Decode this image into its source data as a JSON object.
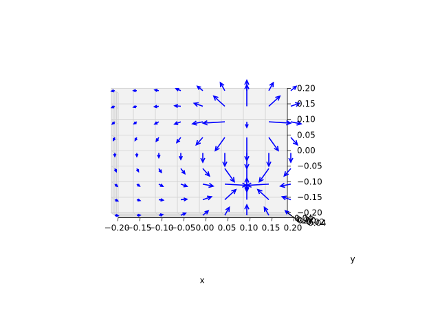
{
  "chart_data": {
    "type": "quiver3d",
    "title": "",
    "xlabel": "x",
    "ylabel": "y",
    "zlabel": "",
    "xlim": [
      -0.2,
      0.2
    ],
    "ylim": [
      -0.04,
      0.04
    ],
    "zlim": [
      -0.2,
      0.2
    ],
    "x_ticks": [
      "−0.20",
      "−0.15",
      "−0.10",
      "−0.05",
      "0.00",
      "0.05",
      "0.10",
      "0.15",
      "0.20"
    ],
    "y_ticks": [
      "−0.04",
      "−0.02",
      "0.00",
      "0.02",
      "0.04"
    ],
    "z_ticks": [
      "−0.20",
      "−0.15",
      "−0.10",
      "−0.05",
      "0.00",
      "0.05",
      "0.10",
      "0.15",
      "0.20"
    ],
    "grid": true,
    "arrow_color": "#0000ff",
    "field": "E-field of two point charges: +q at (0.1, 0.1), −q at (0.1, −0.1) in the x–z plane",
    "grid_x": [
      -0.2,
      -0.15,
      -0.1,
      -0.05,
      0.0,
      0.05,
      0.1,
      0.15,
      0.2
    ],
    "grid_z": [
      -0.2,
      -0.15,
      -0.1,
      -0.05,
      0.0,
      0.05,
      0.1,
      0.15,
      0.2
    ]
  }
}
